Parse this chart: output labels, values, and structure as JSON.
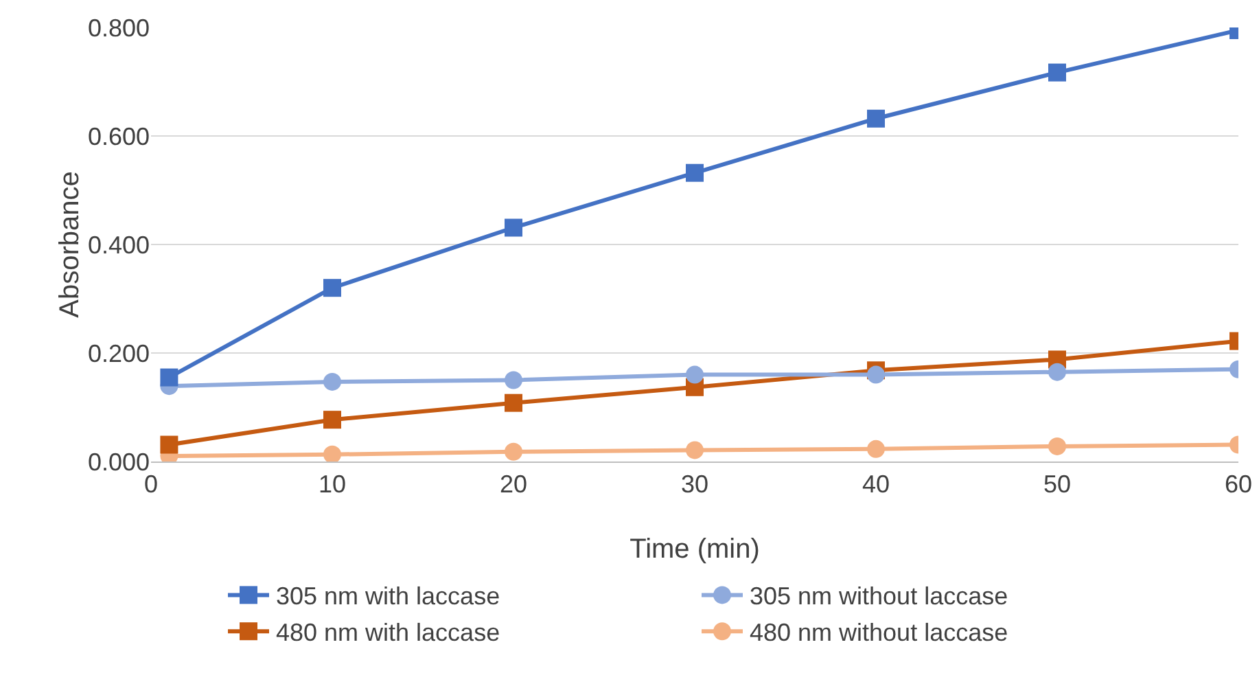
{
  "chart_data": {
    "type": "line",
    "xlabel": "Time (min)",
    "ylabel": "Absorbance",
    "x": [
      1,
      10,
      20,
      30,
      40,
      50,
      60
    ],
    "series": [
      {
        "name": "305 nm with laccase",
        "color": "#4472c4",
        "marker": "square",
        "values": [
          0.155,
          0.32,
          0.431,
          0.532,
          0.632,
          0.717,
          0.795
        ]
      },
      {
        "name": "305 nm without laccase",
        "color": "#8faadc",
        "marker": "circle",
        "values": [
          0.139,
          0.147,
          0.15,
          0.16,
          0.16,
          0.165,
          0.17
        ]
      },
      {
        "name": "480 nm with laccase",
        "color": "#c55a11",
        "marker": "square",
        "values": [
          0.031,
          0.077,
          0.108,
          0.137,
          0.168,
          0.188,
          0.222
        ]
      },
      {
        "name": "480 nm without laccase",
        "color": "#f4b183",
        "marker": "circle",
        "values": [
          0.01,
          0.013,
          0.018,
          0.021,
          0.023,
          0.028,
          0.031
        ]
      }
    ],
    "xlim": [
      0,
      60
    ],
    "xticks": [
      0,
      10,
      20,
      30,
      40,
      50,
      60
    ],
    "ylim": [
      0,
      0.8
    ],
    "yticks": [
      {
        "value": 0,
        "label": "0.000"
      },
      {
        "value": 0.2,
        "label": "0.200"
      },
      {
        "value": 0.4,
        "label": "0.400"
      },
      {
        "value": 0.6,
        "label": "0.600"
      },
      {
        "value": 0.8,
        "label": "0.800"
      }
    ],
    "grid": "y",
    "legend": "bottom",
    "line_style": "solid"
  }
}
